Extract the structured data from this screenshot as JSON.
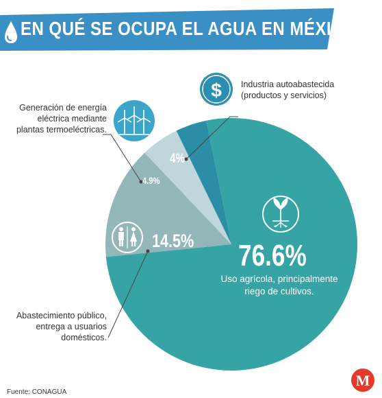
{
  "header": {
    "title": "EN QUÉ SE OCUPA EL AGUA EN MÉXICO:"
  },
  "colors": {
    "banner": "#3a8fc4",
    "agricola": "#36a3a5",
    "publico": "#93b7b9",
    "energia": "#bfd7db",
    "industria": "#2c8ea6",
    "icon_industria": "#2a8fb0",
    "icon_energia": "#3aa5c9",
    "logo": "#e23b2c"
  },
  "chart_data": {
    "type": "pie",
    "slices": [
      {
        "label": "Uso agrícola, principalmente riego de cultivos.",
        "value": 76.6,
        "display": "76.6%",
        "icon": "plant-icon"
      },
      {
        "label": "Abastecimiento público, entrega a usuarios domésticos.",
        "value": 14.5,
        "display": "14.5%",
        "icon": "restroom-icon"
      },
      {
        "label": "Generación de energía eléctrica mediante plantas termoeléctricas.",
        "value": 4.9,
        "display": "4.9%",
        "icon": "wind-turbine-icon"
      },
      {
        "label": "Industria autoabastecida (productos y servicios)",
        "value": 4.0,
        "display": "4%",
        "icon": "dollar-icon"
      }
    ]
  },
  "labels": {
    "industria": [
      "Industria autoabastecida",
      "(productos y servicios)"
    ],
    "energia": [
      "Generación de energía",
      "eléctrica mediante",
      "plantas termoeléctricas."
    ],
    "publico": [
      "Abastecimiento público,",
      "entrega a usuarios",
      "domésticos."
    ],
    "agricola": [
      "Uso agrícola, principalmente",
      "riego de cultivos."
    ]
  },
  "source": "Fuente: CONAGUA",
  "logo_letter": "M"
}
